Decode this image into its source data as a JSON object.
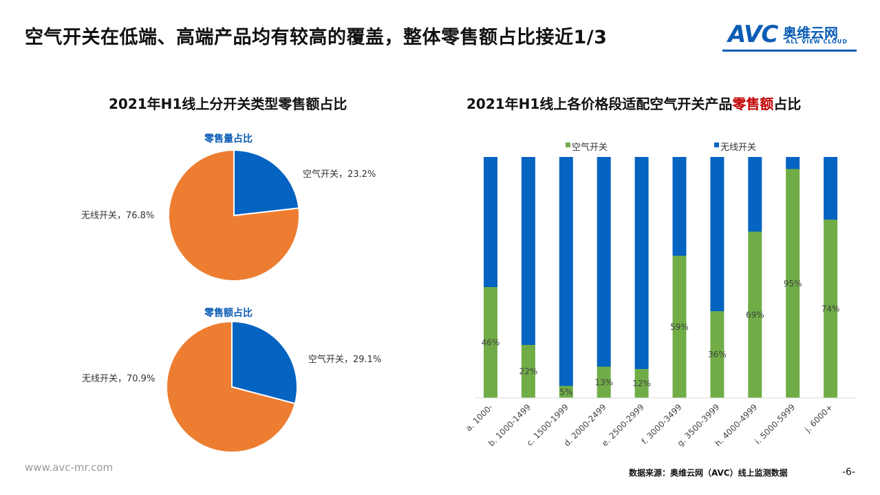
{
  "title": "空气开关在低端、高端产品均有较高的覆盖，整体零售额占比接近1/3",
  "logo": {
    "text": "AVC",
    "cn": "奥维云网",
    "en": "ALL VIEW CLOUD"
  },
  "footer_url": "www.avc-mr.com",
  "source": "数据来源：奥维云网（AVC）线上监测数据",
  "page_number": "-6-",
  "colors": {
    "air": "#ed7d31",
    "wireless": "#0563c1",
    "bar_air": "#70ad47",
    "bar_wireless": "#0563c1",
    "brand": "#0b5cb5"
  },
  "left_title": "2021年H1线上分开关类型零售额占比",
  "right_title": {
    "prefix": "2021年H1线上各价格段适配空气开关产品",
    "highlight": "零售额",
    "suffix": "占比"
  },
  "chart_data": [
    {
      "type": "pie",
      "title": "零售量占比",
      "slices": [
        {
          "name": "空气开关",
          "value": 23.2,
          "label": "空气开关，23.2%"
        },
        {
          "name": "无线开关",
          "value": 76.8,
          "label": "无线开关，76.8%"
        }
      ]
    },
    {
      "type": "pie",
      "title": "零售额占比",
      "slices": [
        {
          "name": "空气开关",
          "value": 29.1,
          "label": "空气开关，29.1%"
        },
        {
          "name": "无线开关",
          "value": 70.9,
          "label": "无线开关，70.9%"
        }
      ]
    },
    {
      "type": "bar",
      "stacked": true,
      "percent": true,
      "legend_position": "top",
      "categories": [
        "a. 1000-",
        "b. 1000-1499",
        "c. 1500-1999",
        "d. 2000-2499",
        "e. 2500-2999",
        "f. 3000-3499",
        "g. 3500-3999",
        "h. 4000-4999",
        "i. 5000-5999",
        "j. 6000+"
      ],
      "series": [
        {
          "name": "空气开关",
          "values": [
            46,
            22,
            5,
            13,
            12,
            59,
            36,
            69,
            95,
            74
          ],
          "labels": [
            "46%",
            "22%",
            "5%",
            "13%",
            "12%",
            "59%",
            "36%",
            "69%",
            "95%",
            "74%"
          ]
        },
        {
          "name": "无线开关",
          "values": [
            54,
            78,
            95,
            87,
            88,
            41,
            64,
            31,
            5,
            26
          ]
        }
      ],
      "ylim": [
        0,
        100
      ]
    }
  ]
}
